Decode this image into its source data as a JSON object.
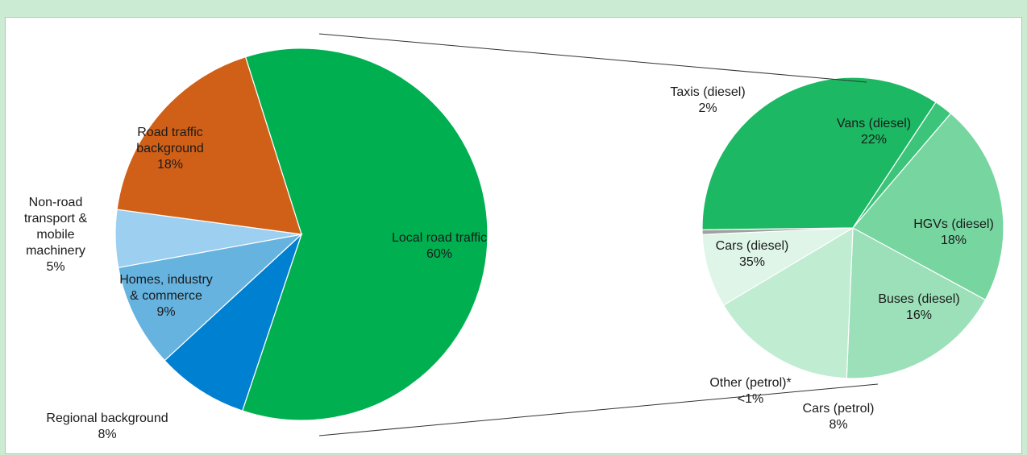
{
  "chart_data": [
    {
      "type": "pie",
      "categories": [
        "Local road traffic",
        "Regional background",
        "Homes, industry & commerce",
        "Non-road transport & mobile machinery",
        "Road traffic background"
      ],
      "values": [
        60,
        8,
        9,
        5,
        18
      ],
      "data_labels": [
        "60%",
        "8%",
        "9%",
        "5%",
        "18%"
      ],
      "colors": [
        "#00b050",
        "#0080d0",
        "#66b3e0",
        "#9dcff0",
        "#d06018"
      ],
      "exploded_slice": "Local road traffic"
    },
    {
      "type": "pie",
      "categories": [
        "Vans (diesel)",
        "HGVs (diesel)",
        "Buses (diesel)",
        "Cars (petrol)",
        "Other (petrol)*",
        "Cars (diesel)",
        "Taxis (diesel)"
      ],
      "values": [
        22,
        18,
        16,
        8,
        0.5,
        35,
        2
      ],
      "data_labels": [
        "22%",
        "18%",
        "16%",
        "8%",
        "<1%",
        "35%",
        "2%"
      ],
      "colors": [
        "#77d5a0",
        "#9be0b8",
        "#c0ecd2",
        "#def5e7",
        "#a0a0a0",
        "#1db864",
        "#3cc47a"
      ],
      "breakdown_of": "Local road traffic"
    }
  ]
}
